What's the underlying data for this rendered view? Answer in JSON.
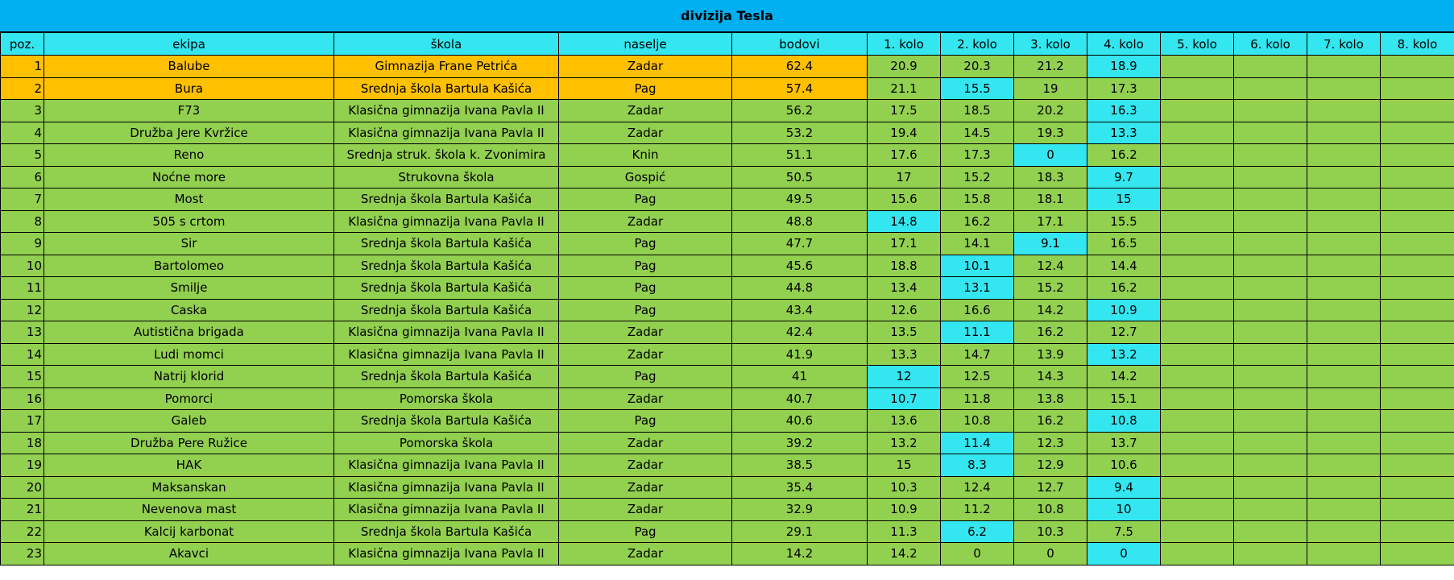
{
  "title": "divizija Tesla",
  "table": {
    "header": [
      "poz.",
      "ekipa",
      "škola",
      "naselje",
      "bodovi",
      "1. kolo",
      "2. kolo",
      "3. kolo",
      "4. kolo",
      "5. kolo",
      "6. kolo",
      "7. kolo",
      "8. kolo"
    ],
    "rows": [
      [
        1,
        "Balube",
        "Gimnazija Frane Petrića",
        "Zadar",
        62.4,
        20.9,
        20.3,
        21.2,
        18.9
      ],
      [
        2,
        "Bura",
        "Srednja škola Bartula Kašića",
        "Pag",
        57.4,
        21.1,
        15.5,
        19,
        17.3
      ],
      [
        3,
        "F73",
        "Klasična gimnazija Ivana Pavla II",
        "Zadar",
        56.2,
        17.5,
        18.5,
        20.2,
        16.3
      ],
      [
        4,
        "Družba Jere Kvržice",
        "Klasična gimnazija Ivana Pavla II",
        "Zadar",
        53.2,
        19.4,
        14.5,
        19.3,
        13.3
      ],
      [
        5,
        "Reno",
        "Srednja struk. škola k. Zvonimira",
        "Knin",
        51.1,
        17.6,
        17.3,
        0,
        16.2
      ],
      [
        6,
        "Noćne more",
        "Strukovna škola",
        "Gospić",
        50.5,
        17,
        15.2,
        18.3,
        9.7
      ],
      [
        7,
        "Most",
        "Srednja škola Bartula Kašića",
        "Pag",
        49.5,
        15.6,
        15.8,
        18.1,
        15
      ],
      [
        8,
        "505 s crtom",
        "Klasična gimnazija Ivana Pavla II",
        "Zadar",
        48.8,
        14.8,
        16.2,
        17.1,
        15.5
      ],
      [
        9,
        "Sir",
        "Srednja škola Bartula Kašića",
        "Pag",
        47.7,
        17.1,
        14.1,
        9.1,
        16.5
      ],
      [
        10,
        "Bartolomeo",
        "Srednja škola Bartula Kašića",
        "Pag",
        45.6,
        18.8,
        10.1,
        12.4,
        14.4
      ],
      [
        11,
        "Smilje",
        "Srednja škola Bartula Kašića",
        "Pag",
        44.8,
        13.4,
        13.1,
        15.2,
        16.2
      ],
      [
        12,
        "Caska",
        "Srednja škola Bartula Kašića",
        "Pag",
        43.4,
        12.6,
        16.6,
        14.2,
        10.9
      ],
      [
        13,
        "Autistična brigada",
        "Klasična gimnazija Ivana Pavla II",
        "Zadar",
        42.4,
        13.5,
        11.1,
        16.2,
        12.7
      ],
      [
        14,
        "Ludi momci",
        "Klasična gimnazija Ivana Pavla II",
        "Zadar",
        41.9,
        13.3,
        14.7,
        13.9,
        13.2
      ],
      [
        15,
        "Natrij klorid",
        "Srednja škola Bartula Kašića",
        "Pag",
        41,
        12,
        12.5,
        14.3,
        14.2
      ],
      [
        16,
        "Pomorci",
        "Pomorska škola",
        "Zadar",
        40.7,
        10.7,
        11.8,
        13.8,
        15.1
      ],
      [
        17,
        "Galeb",
        "Srednja škola Bartula Kašića",
        "Pag",
        40.6,
        13.6,
        10.8,
        16.2,
        10.8
      ],
      [
        18,
        "Družba Pere Ružice",
        "Pomorska škola",
        "Zadar",
        39.2,
        13.2,
        11.4,
        12.3,
        13.7
      ],
      [
        19,
        "HAK",
        "Klasična gimnazija Ivana Pavla II",
        "Zadar",
        38.5,
        15,
        8.3,
        12.9,
        10.6
      ],
      [
        20,
        "Maksanskan",
        "Klasična gimnazija Ivana Pavla II",
        "Zadar",
        35.4,
        10.3,
        12.4,
        12.7,
        9.4
      ],
      [
        21,
        "Nevenova mast",
        "Klasična gimnazija Ivana Pavla II",
        "Zadar",
        32.9,
        10.9,
        11.2,
        10.8,
        10
      ],
      [
        22,
        "Kalcij karbonat",
        "Srednja škola Bartula Kašića",
        "Pag",
        29.1,
        11.3,
        6.2,
        10.3,
        7.5
      ],
      [
        23,
        "Akavci",
        "Klasična gimnazija Ivana Pavla II",
        "Zadar",
        14.2,
        14.2,
        0,
        0,
        0
      ]
    ]
  }
}
